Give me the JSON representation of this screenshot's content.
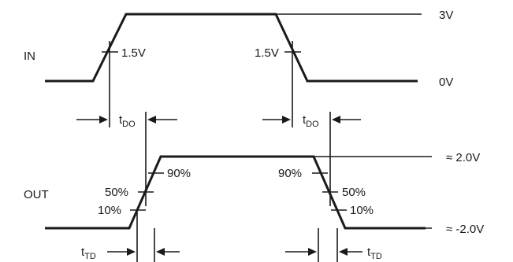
{
  "signals": {
    "in": "IN",
    "out": "OUT"
  },
  "levels": {
    "in_high": "3V",
    "in_low": "0V",
    "out_high": "≈ 2.0V",
    "out_low": "≈ -2.0V"
  },
  "in_threshold": {
    "rise": "1.5V",
    "fall": "1.5V"
  },
  "out_thresholds": {
    "rise_90": "90%",
    "rise_50": "50%",
    "rise_10": "10%",
    "fall_90": "90%",
    "fall_50": "50%",
    "fall_10": "10%"
  },
  "delays": {
    "tdo_rise": {
      "main": "t",
      "sub": "DO"
    },
    "tdo_fall": {
      "main": "t",
      "sub": "DO"
    },
    "ttd_rise": {
      "main": "t",
      "sub": "TD"
    },
    "ttd_fall": {
      "main": "t",
      "sub": "TD"
    }
  }
}
